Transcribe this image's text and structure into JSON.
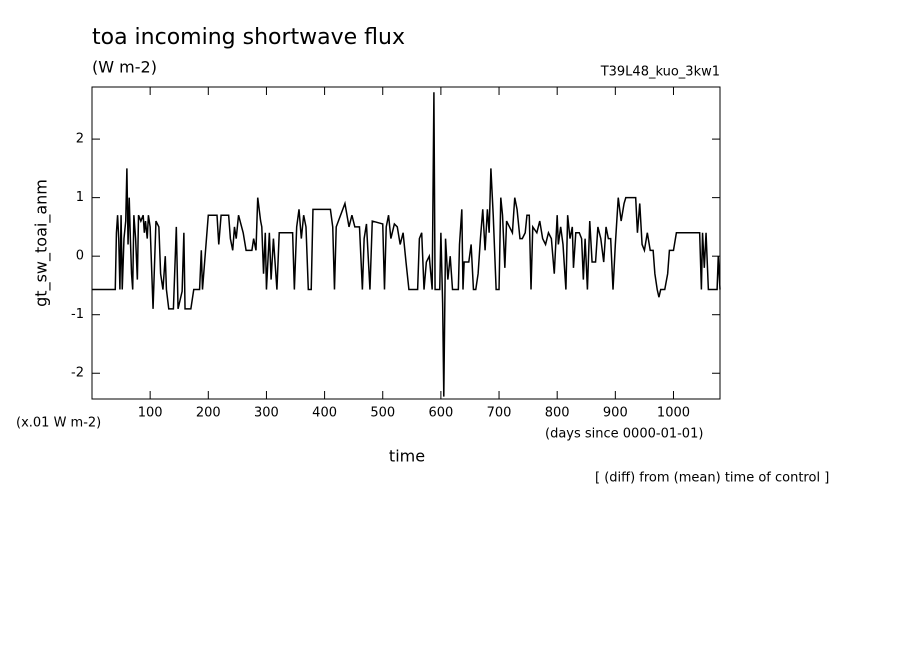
{
  "chart_data": {
    "type": "line",
    "title": "toa incoming shortwave flux",
    "subtitle": "(W m-2)",
    "run_label": "T39L48_kuo_3kw1",
    "y_label": "gt_sw_toai_anm",
    "y_unit": "(x.01 W m-2)",
    "x_label": "time",
    "x_unit": "(days since 0000-01-01)",
    "note": "[ (diff) from (mean) time of control ]",
    "xlim": [
      0,
      1080
    ],
    "ylim": [
      -2.44,
      2.89
    ],
    "xticks": [
      100,
      200,
      300,
      400,
      500,
      600,
      700,
      800,
      900,
      1000
    ],
    "yticks": [
      -2,
      -1,
      0,
      1,
      2
    ],
    "color": "#000000",
    "x": [
      0,
      40,
      42,
      44,
      46,
      48,
      50,
      52,
      55,
      58,
      60,
      62,
      64,
      66,
      68,
      70,
      72,
      75,
      78,
      80,
      84,
      88,
      90,
      92,
      95,
      97,
      100,
      105,
      110,
      115,
      118,
      122,
      126,
      128,
      132,
      140,
      145,
      148,
      155,
      158,
      160,
      170,
      175,
      185,
      188,
      190,
      200,
      215,
      218,
      222,
      235,
      238,
      242,
      245,
      248,
      252,
      260,
      265,
      275,
      278,
      282,
      285,
      290,
      292,
      295,
      298,
      300,
      305,
      308,
      312,
      318,
      322,
      345,
      348,
      352,
      356,
      360,
      364,
      368,
      372,
      377,
      380,
      410,
      414,
      417,
      420,
      435,
      442,
      447,
      452,
      460,
      465,
      468,
      472,
      478,
      482,
      500,
      503,
      506,
      510,
      514,
      520,
      525,
      530,
      535,
      540,
      545,
      560,
      563,
      567,
      571,
      575,
      580,
      585,
      588,
      590,
      598,
      600,
      603,
      605,
      608,
      612,
      616,
      620,
      630,
      632,
      636,
      638,
      640,
      648,
      652,
      656,
      660,
      664,
      668,
      672,
      676,
      680,
      683,
      686,
      690,
      695,
      700,
      703,
      706,
      710,
      713,
      718,
      723,
      727,
      731,
      736,
      740,
      745,
      748,
      752,
      755,
      758,
      765,
      770,
      775,
      780,
      785,
      790,
      795,
      800,
      802,
      806,
      810,
      815,
      818,
      822,
      826,
      828,
      832,
      838,
      842,
      845,
      848,
      852,
      856,
      860,
      866,
      870,
      875,
      880,
      884,
      888,
      892,
      896,
      900,
      905,
      910,
      915,
      918,
      935,
      938,
      942,
      946,
      950,
      955,
      960,
      965,
      968,
      972,
      975,
      978,
      985,
      990,
      993,
      1000,
      1005,
      1045,
      1048,
      1050,
      1053,
      1056,
      1060,
      1075,
      1077,
      1080
    ],
    "values": [
      -0.57,
      -0.57,
      0.4,
      0.7,
      0.3,
      -0.57,
      0.7,
      -0.57,
      0.3,
      0.6,
      1.5,
      0.2,
      1.0,
      0.3,
      -0.3,
      -0.57,
      0.7,
      0.3,
      -0.4,
      0.7,
      0.6,
      0.7,
      0.4,
      0.6,
      0.3,
      0.7,
      0.5,
      -0.9,
      0.6,
      0.5,
      -0.3,
      -0.57,
      0.0,
      -0.57,
      -0.9,
      -0.9,
      0.5,
      -0.9,
      -0.6,
      0.4,
      -0.9,
      -0.9,
      -0.57,
      -0.57,
      0.1,
      -0.57,
      0.7,
      0.7,
      0.2,
      0.7,
      0.7,
      0.3,
      0.1,
      0.5,
      0.3,
      0.7,
      0.4,
      0.1,
      0.1,
      0.3,
      0.1,
      1.0,
      0.6,
      0.5,
      -0.3,
      0.4,
      -0.57,
      0.4,
      -0.4,
      0.3,
      -0.57,
      0.4,
      0.4,
      -0.57,
      0.5,
      0.8,
      0.3,
      0.7,
      0.5,
      -0.57,
      -0.57,
      0.8,
      0.8,
      0.5,
      -0.57,
      0.5,
      0.9,
      0.5,
      0.7,
      0.5,
      0.5,
      -0.57,
      0.3,
      0.55,
      -0.57,
      0.6,
      0.55,
      -0.57,
      0.5,
      0.7,
      0.3,
      0.55,
      0.5,
      0.2,
      0.4,
      -0.1,
      -0.57,
      -0.57,
      0.3,
      0.4,
      -0.57,
      -0.1,
      0.0,
      -0.57,
      2.8,
      -0.57,
      -0.57,
      0.4,
      -0.8,
      -2.4,
      0.3,
      -0.4,
      0.0,
      -0.57,
      -0.57,
      0.2,
      0.8,
      -0.57,
      -0.1,
      -0.1,
      0.2,
      -0.57,
      -0.57,
      -0.3,
      0.3,
      0.8,
      0.1,
      0.8,
      0.4,
      1.5,
      0.7,
      -0.57,
      -0.57,
      1.0,
      0.7,
      -0.2,
      0.6,
      0.5,
      0.4,
      1.0,
      0.8,
      0.3,
      0.3,
      0.4,
      0.7,
      0.7,
      -0.57,
      0.5,
      0.4,
      0.6,
      0.3,
      0.2,
      0.4,
      0.3,
      -0.3,
      0.7,
      0.2,
      0.5,
      0.2,
      -0.57,
      0.7,
      0.3,
      0.5,
      -0.2,
      0.4,
      0.4,
      0.3,
      -0.4,
      0.3,
      -0.57,
      0.6,
      -0.1,
      -0.1,
      0.5,
      0.3,
      -0.1,
      0.5,
      0.3,
      0.3,
      -0.57,
      0.2,
      1.0,
      0.6,
      0.9,
      1.0,
      1.0,
      0.4,
      0.9,
      0.2,
      0.1,
      0.4,
      0.1,
      0.1,
      -0.3,
      -0.57,
      -0.7,
      -0.57,
      -0.57,
      -0.3,
      0.1,
      0.1,
      0.4,
      0.4,
      -0.57,
      0.4,
      -0.2,
      0.4,
      -0.57,
      -0.57,
      0.0,
      -0.57
    ]
  }
}
